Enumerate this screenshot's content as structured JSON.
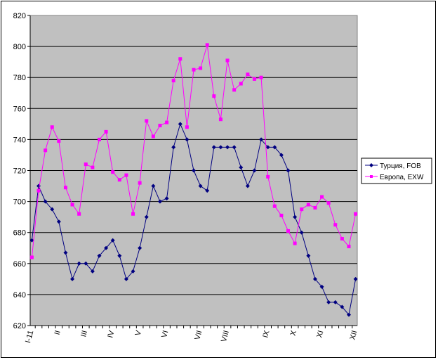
{
  "chart_data": {
    "type": "line",
    "title": "",
    "xlabel": "",
    "ylabel": "",
    "ylim": [
      620,
      820
    ],
    "y_ticks": [
      620,
      640,
      660,
      680,
      700,
      720,
      740,
      760,
      780,
      800,
      820
    ],
    "x_tick_labels": [
      "I-11",
      "II",
      "III",
      "IV",
      "V",
      "VI",
      "VII",
      "VIII",
      "IX",
      "X",
      "XI",
      "XII"
    ],
    "x_tick_label_positions": [
      0,
      4,
      8,
      12,
      16,
      20,
      25,
      29,
      35,
      39,
      43,
      48
    ],
    "grid": true,
    "plot_background": "#c0c0c0",
    "legend_position": "right",
    "series": [
      {
        "name": "Турция, FOB",
        "color": "#000080",
        "marker": "diamond",
        "values": [
          675,
          710,
          700,
          695,
          687,
          667,
          650,
          660,
          660,
          655,
          665,
          670,
          675,
          665,
          650,
          655,
          670,
          690,
          710,
          700,
          702,
          735,
          750,
          740,
          720,
          710,
          707,
          735,
          735,
          735,
          735,
          722,
          710,
          720,
          740,
          735,
          735,
          730,
          720,
          690,
          680,
          665,
          650,
          645,
          635,
          635,
          632,
          627,
          650
        ]
      },
      {
        "name": "Европа, EXW",
        "color": "#ff00ff",
        "marker": "square",
        "values": [
          664,
          707,
          733,
          748,
          739,
          709,
          698,
          692,
          724,
          722,
          740,
          745,
          719,
          714,
          717,
          692,
          712,
          752,
          742,
          749,
          751,
          778,
          792,
          748,
          785,
          786,
          801,
          768,
          753,
          791,
          772,
          776,
          782,
          779,
          780,
          716,
          697,
          691,
          681,
          673,
          695,
          698,
          696,
          703,
          699,
          685,
          676,
          671,
          692
        ]
      }
    ]
  }
}
